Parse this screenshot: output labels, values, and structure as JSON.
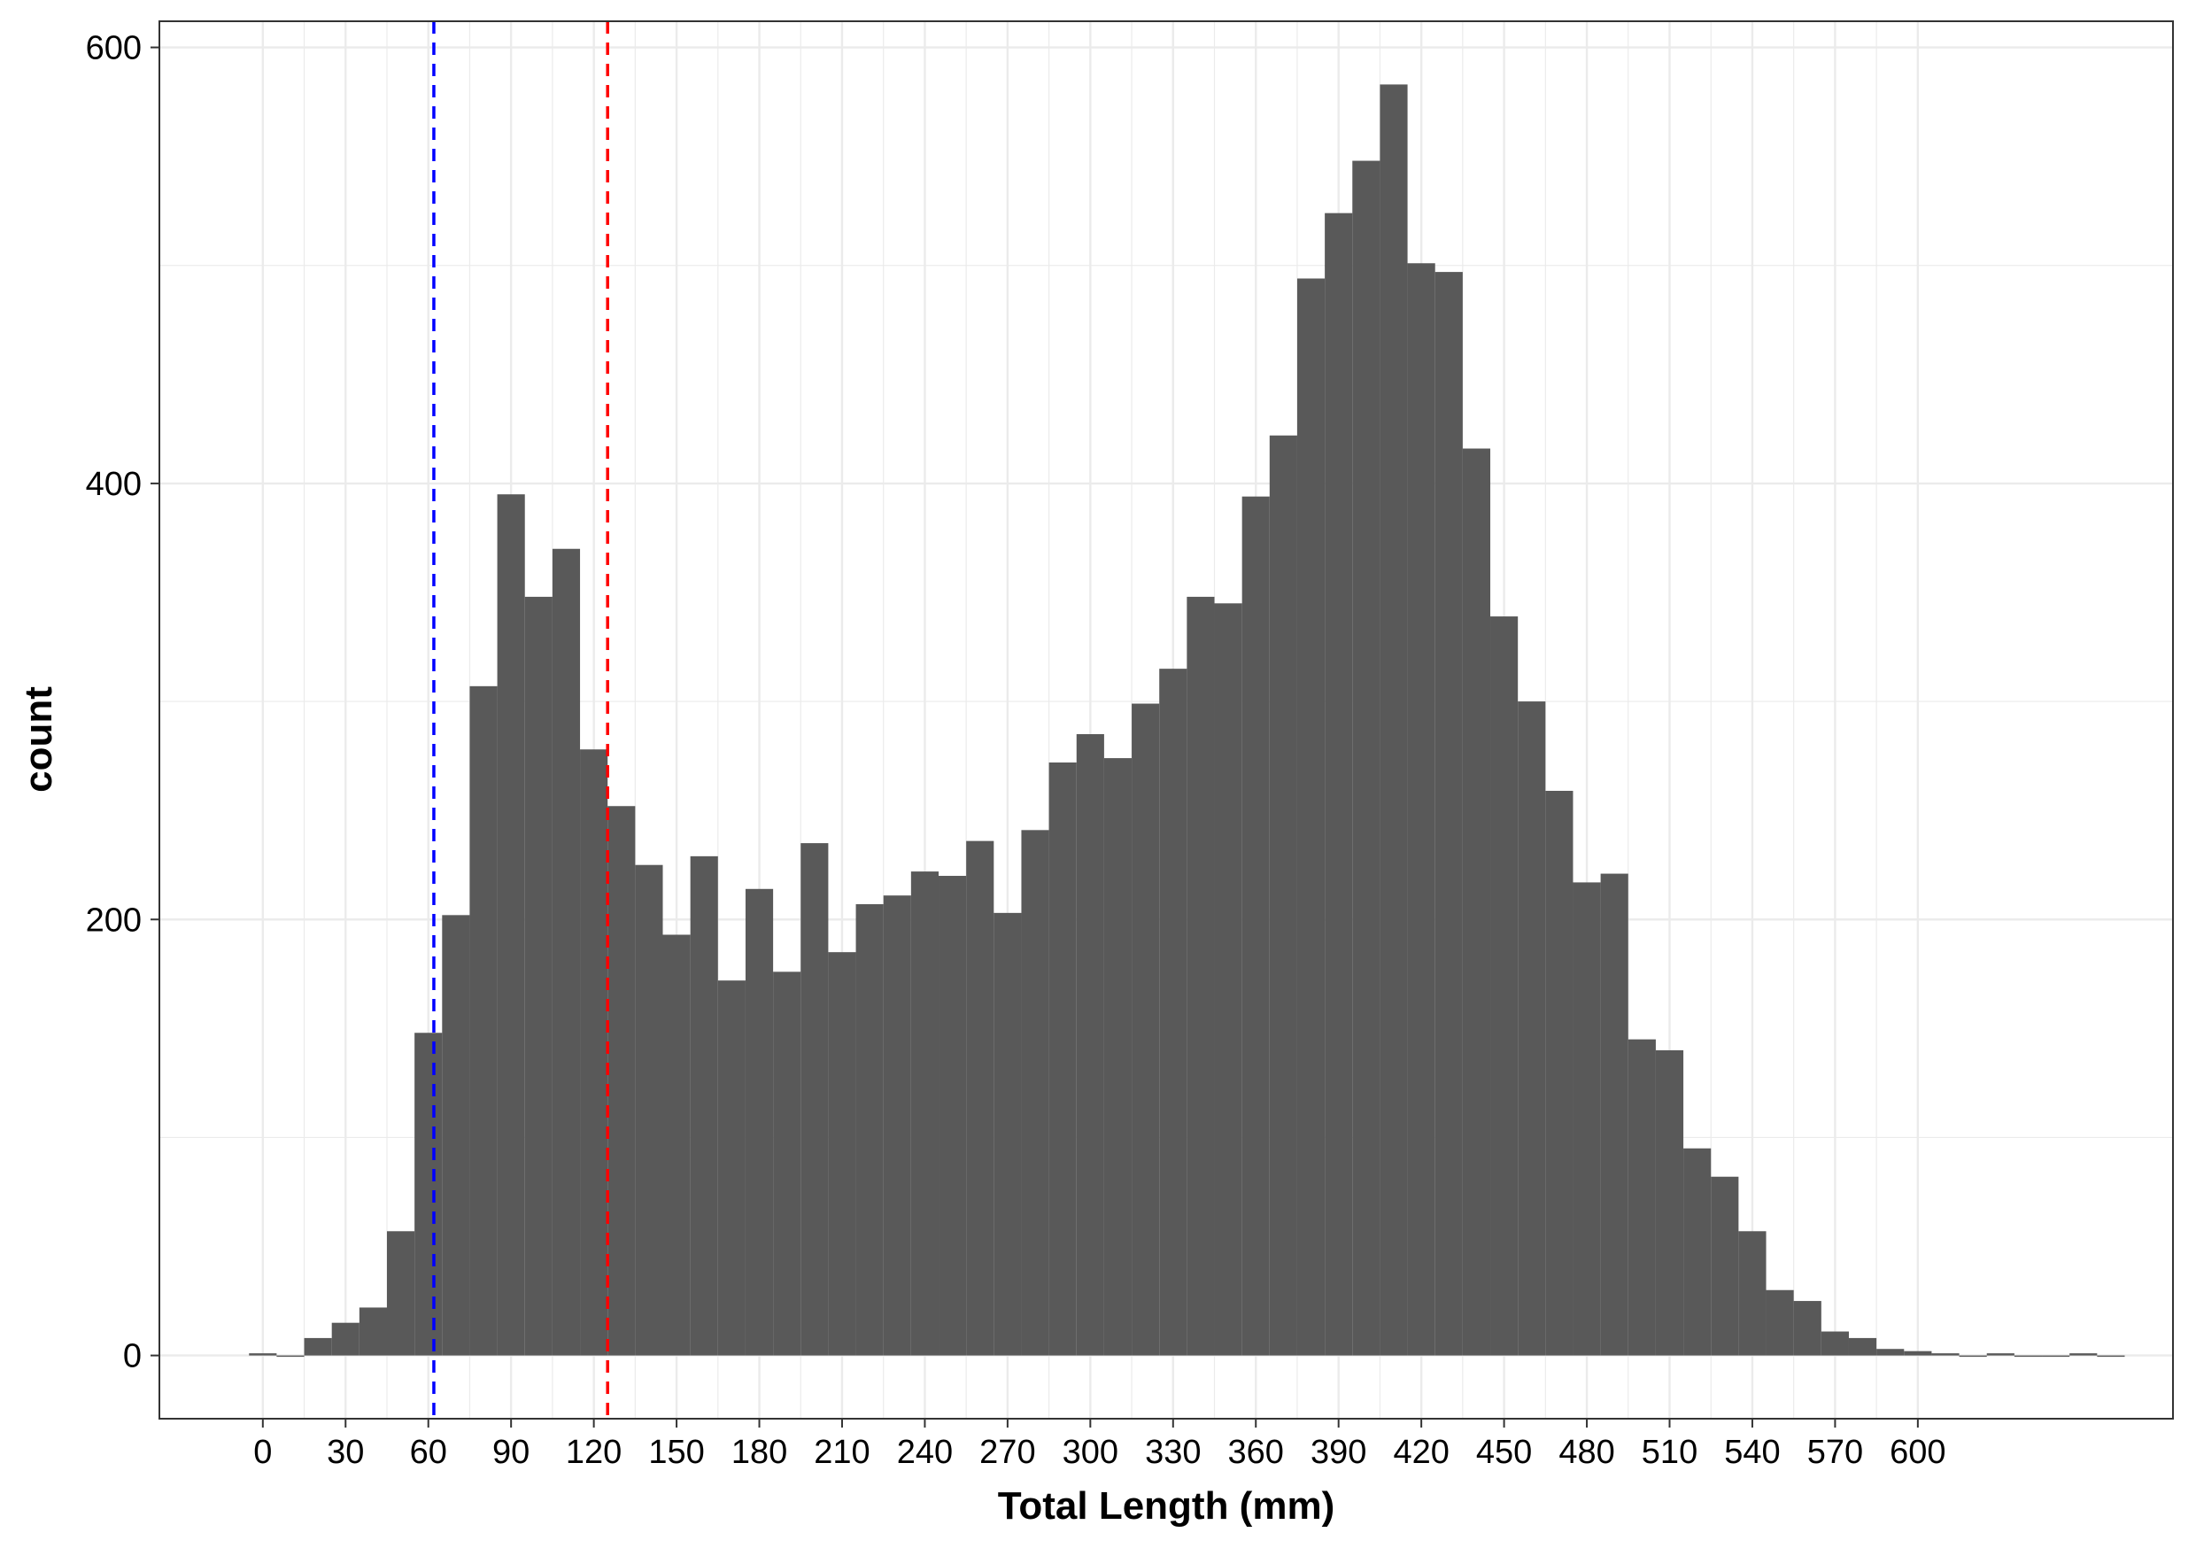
{
  "chart_data": {
    "type": "bar",
    "subtype": "histogram",
    "xlabel": "Total Length (mm)",
    "ylabel": "count",
    "bin_width": 10,
    "x_centers": [
      0,
      10,
      20,
      30,
      40,
      50,
      60,
      70,
      80,
      90,
      100,
      110,
      120,
      130,
      140,
      150,
      160,
      170,
      180,
      190,
      200,
      210,
      220,
      230,
      240,
      250,
      260,
      270,
      280,
      290,
      300,
      310,
      320,
      330,
      340,
      350,
      360,
      370,
      380,
      390,
      400,
      410,
      420,
      430,
      440,
      450,
      460,
      470,
      480,
      490,
      500,
      510,
      520,
      530,
      540,
      550,
      560,
      570,
      580,
      590,
      600,
      610,
      620,
      630,
      640,
      650,
      660,
      670
    ],
    "values": [
      1,
      0,
      8,
      15,
      22,
      57,
      148,
      202,
      307,
      395,
      348,
      370,
      278,
      252,
      225,
      193,
      229,
      172,
      214,
      176,
      235,
      185,
      207,
      211,
      222,
      220,
      236,
      203,
      241,
      272,
      285,
      274,
      299,
      315,
      348,
      345,
      394,
      422,
      494,
      524,
      548,
      583,
      501,
      497,
      416,
      339,
      300,
      259,
      217,
      221,
      145,
      140,
      95,
      82,
      57,
      30,
      25,
      11,
      8,
      3,
      2,
      1,
      0,
      1,
      0,
      0,
      1,
      0
    ],
    "vlines": [
      {
        "x": 62,
        "color": "#0000ff",
        "style": "dashed"
      },
      {
        "x": 125,
        "color": "#ff0000",
        "style": "dashed"
      }
    ],
    "bar_color": "#595959",
    "x_ticks": [
      0,
      30,
      60,
      90,
      120,
      150,
      180,
      210,
      240,
      270,
      300,
      330,
      360,
      390,
      420,
      450,
      480,
      510,
      540,
      570,
      600
    ],
    "x_tick_labels": [
      "0",
      "30",
      "60",
      "90",
      "120",
      "150",
      "180",
      "210",
      "240",
      "270",
      "300",
      "330",
      "360",
      "390",
      "420",
      "450",
      "480",
      "510",
      "540",
      "570",
      "600"
    ],
    "y_ticks": [
      0,
      200,
      400,
      600
    ],
    "y_tick_labels": [
      "0",
      "200",
      "400",
      "600"
    ],
    "xlim": [
      -37.5,
      692.5
    ],
    "ylim": [
      -29,
      612
    ],
    "grid": true,
    "theme": "bw"
  }
}
